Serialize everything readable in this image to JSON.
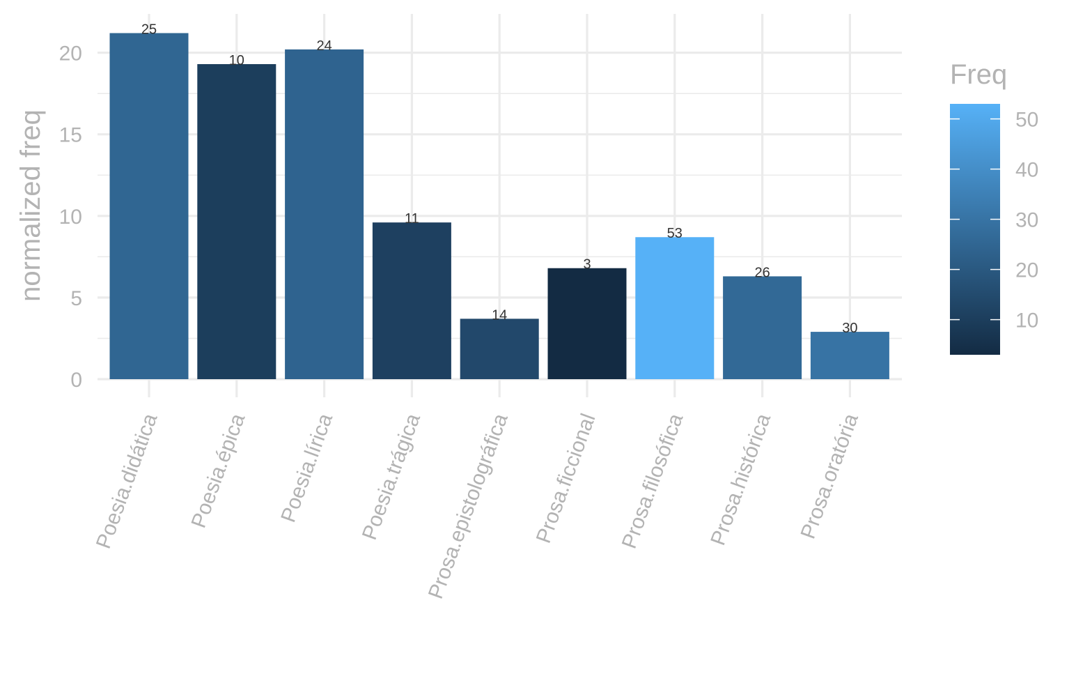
{
  "chart_data": {
    "type": "bar",
    "categories": [
      "Poesia.didática",
      "Poesia.épica",
      "Poesia.lírica",
      "Poesia.trágica",
      "Prosa.epistolográfica",
      "Prosa.ficcional",
      "Prosa.filosófica",
      "Prosa.histórica",
      "Prosa.oratória"
    ],
    "values": [
      21.2,
      19.3,
      20.2,
      9.6,
      3.7,
      6.8,
      8.7,
      6.3,
      2.9
    ],
    "freq": [
      25,
      10,
      24,
      11,
      14,
      3,
      53,
      26,
      30
    ],
    "data_labels": [
      "25",
      "10",
      "24",
      "11",
      "14",
      "3",
      "53",
      "26",
      "30"
    ],
    "xlabel": "",
    "ylabel": "normalized freq",
    "ylim": [
      0,
      22
    ],
    "yticks": [
      0,
      5,
      10,
      15,
      20
    ],
    "grid": true,
    "legend": {
      "title": "Freq",
      "position": "right",
      "range": [
        3,
        53
      ],
      "ticks": [
        10,
        20,
        30,
        40,
        50
      ],
      "low_color": "#132B43",
      "high_color": "#56B1F7"
    }
  }
}
